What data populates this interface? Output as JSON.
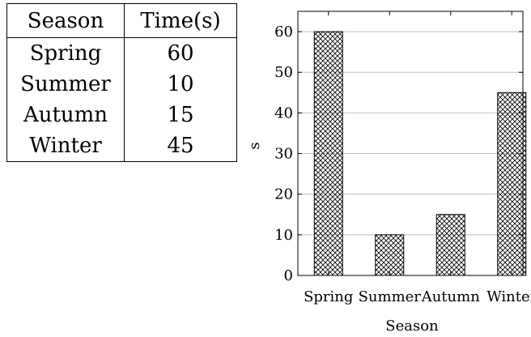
{
  "table": {
    "headers": [
      "Season",
      "Time(s)"
    ],
    "rows": [
      [
        "Spring",
        "60"
      ],
      [
        "Summer",
        "10"
      ],
      [
        "Autumn",
        "15"
      ],
      [
        "Winter",
        "45"
      ]
    ]
  },
  "chart_data": {
    "type": "bar",
    "categories": [
      "Spring",
      "Summer",
      "Autumn",
      "Winter"
    ],
    "values": [
      60,
      10,
      15,
      45
    ],
    "title": "",
    "xlabel": "Season",
    "ylabel": "s",
    "ylim": [
      0,
      65
    ],
    "yticks": [
      0,
      10,
      20,
      30,
      40,
      50,
      60
    ],
    "grid": "horizontal",
    "bar_fill": "crosshatch",
    "colors": {
      "bar_stroke": "#000000",
      "grid": "#bfbfbf",
      "hatch": "#000000"
    }
  }
}
